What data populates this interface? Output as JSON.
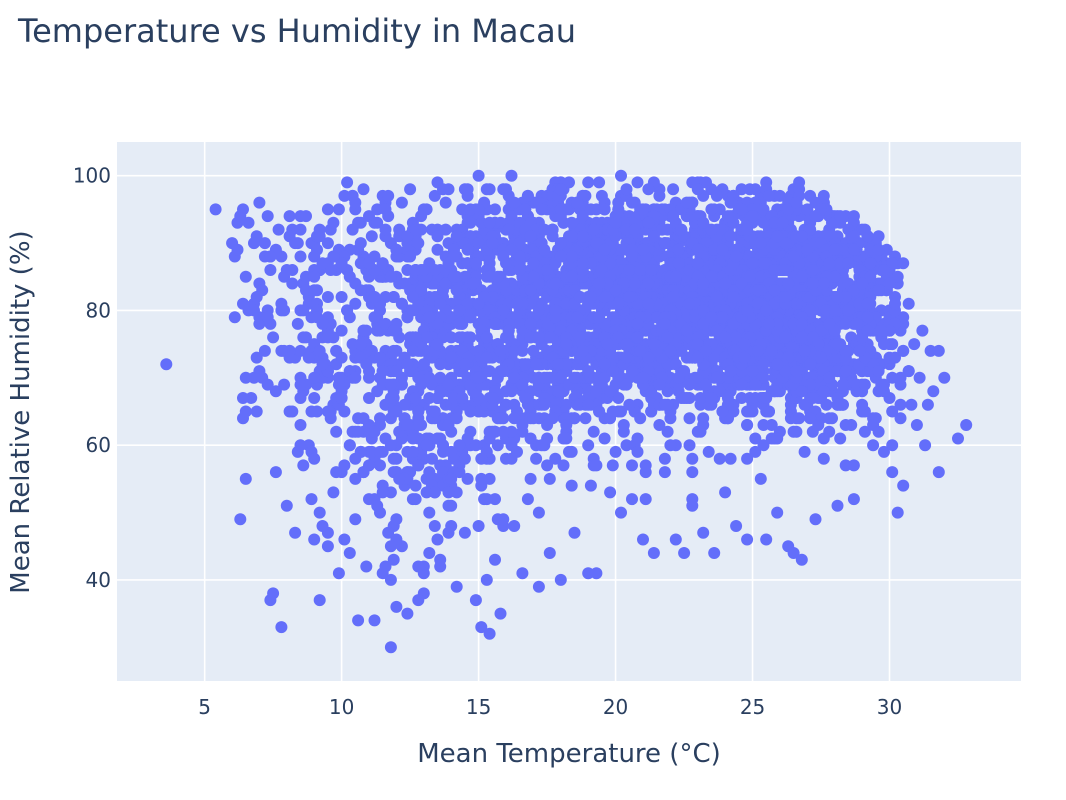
{
  "chart_data": {
    "type": "scatter",
    "title": "Temperature vs Humidity in Macau",
    "xlabel": "Mean Temperature (°C)",
    "ylabel": "Mean Relative Humidity (%)",
    "xlim": [
      1.8,
      34.8
    ],
    "ylim": [
      25,
      105
    ],
    "x_ticks": [
      5,
      10,
      15,
      20,
      25,
      30
    ],
    "y_ticks": [
      40,
      60,
      80,
      100
    ],
    "grid": true,
    "legend": "none",
    "colors": {
      "marker": "#636efa",
      "plot_bg": "#e5ecf6",
      "grid": "#ffffff",
      "text": "#2a3f5f"
    },
    "series": [
      {
        "points": [
          [
            3.6,
            72
          ],
          [
            5.4,
            95
          ],
          [
            6.0,
            90
          ],
          [
            6.1,
            88
          ],
          [
            6.2,
            93
          ],
          [
            6.3,
            94
          ],
          [
            6.3,
            49
          ],
          [
            6.5,
            70
          ],
          [
            6.6,
            93
          ],
          [
            6.9,
            91
          ],
          [
            7.0,
            84
          ],
          [
            7.0,
            78
          ],
          [
            7.2,
            90
          ],
          [
            7.3,
            94
          ],
          [
            7.4,
            37
          ],
          [
            7.5,
            38
          ],
          [
            7.5,
            76
          ],
          [
            7.6,
            68
          ],
          [
            7.7,
            92
          ],
          [
            7.8,
            33
          ],
          [
            7.8,
            88
          ],
          [
            7.9,
            80
          ],
          [
            8.0,
            51
          ],
          [
            8.1,
            74
          ],
          [
            8.2,
            65
          ],
          [
            8.3,
            47
          ],
          [
            8.4,
            59
          ],
          [
            8.6,
            84
          ],
          [
            8.8,
            60
          ],
          [
            8.9,
            52
          ],
          [
            9.0,
            46
          ],
          [
            9.1,
            70
          ],
          [
            9.2,
            37
          ],
          [
            9.2,
            50
          ],
          [
            9.5,
            47
          ],
          [
            9.6,
            92
          ],
          [
            9.7,
            66
          ],
          [
            9.9,
            41
          ],
          [
            10.0,
            56
          ],
          [
            10.1,
            46
          ],
          [
            10.2,
            99
          ],
          [
            10.3,
            44
          ],
          [
            10.5,
            62
          ],
          [
            10.6,
            34
          ],
          [
            10.8,
            98
          ],
          [
            11.0,
            59
          ],
          [
            11.2,
            34
          ],
          [
            11.4,
            50
          ],
          [
            11.6,
            42
          ],
          [
            11.8,
            30
          ],
          [
            11.9,
            48
          ],
          [
            12.0,
            36
          ],
          [
            12.2,
            45
          ],
          [
            12.4,
            35
          ],
          [
            12.6,
            52
          ],
          [
            12.8,
            64
          ],
          [
            13.0,
            38
          ],
          [
            13.2,
            44
          ],
          [
            13.4,
            55
          ],
          [
            13.6,
            42
          ],
          [
            13.8,
            69
          ],
          [
            14.0,
            51
          ],
          [
            14.2,
            39
          ],
          [
            14.5,
            47
          ],
          [
            14.7,
            60
          ],
          [
            14.9,
            37
          ],
          [
            15.1,
            33
          ],
          [
            15.3,
            40
          ],
          [
            15.4,
            32
          ],
          [
            15.6,
            43
          ],
          [
            15.8,
            35
          ],
          [
            16.0,
            58
          ],
          [
            16.3,
            48
          ],
          [
            16.6,
            41
          ],
          [
            16.9,
            55
          ],
          [
            17.2,
            39
          ],
          [
            17.6,
            44
          ],
          [
            18.0,
            40
          ],
          [
            18.5,
            47
          ],
          [
            19.0,
            41
          ],
          [
            19.3,
            41
          ],
          [
            19.8,
            53
          ],
          [
            20.2,
            50
          ],
          [
            20.6,
            57
          ],
          [
            21.0,
            46
          ],
          [
            21.4,
            44
          ],
          [
            21.8,
            58
          ],
          [
            22.2,
            46
          ],
          [
            22.5,
            44
          ],
          [
            22.8,
            51
          ],
          [
            23.2,
            47
          ],
          [
            23.6,
            44
          ],
          [
            24.0,
            53
          ],
          [
            24.4,
            48
          ],
          [
            24.8,
            46
          ],
          [
            25.3,
            55
          ],
          [
            25.5,
            46
          ],
          [
            25.9,
            50
          ],
          [
            26.3,
            45
          ],
          [
            26.5,
            44
          ],
          [
            26.8,
            43
          ],
          [
            27.3,
            49
          ],
          [
            27.6,
            58
          ],
          [
            28.1,
            51
          ],
          [
            28.4,
            57
          ],
          [
            28.7,
            52
          ],
          [
            29.1,
            62
          ],
          [
            29.5,
            64
          ],
          [
            29.8,
            59
          ],
          [
            30.1,
            56
          ],
          [
            30.3,
            50
          ],
          [
            30.5,
            54
          ],
          [
            30.8,
            66
          ],
          [
            31.0,
            63
          ],
          [
            31.3,
            60
          ],
          [
            31.6,
            68
          ],
          [
            31.8,
            56
          ],
          [
            32.0,
            70
          ],
          [
            32.5,
            61
          ],
          [
            32.8,
            63
          ],
          [
            29.9,
            87
          ],
          [
            30.2,
            82
          ],
          [
            30.5,
            78
          ],
          [
            30.9,
            75
          ],
          [
            31.2,
            77
          ],
          [
            31.5,
            74
          ],
          [
            31.8,
            74
          ],
          [
            30.7,
            71
          ],
          [
            31.1,
            70
          ],
          [
            31.4,
            66
          ],
          [
            16.2,
            100
          ],
          [
            20.2,
            100
          ],
          [
            15.0,
            100
          ],
          [
            18.0,
            99
          ],
          [
            22.8,
            99
          ],
          [
            19.4,
            99
          ],
          [
            24.6,
            98
          ],
          [
            26.0,
            97
          ],
          [
            27.5,
            96
          ],
          [
            28.0,
            94
          ],
          [
            28.8,
            92
          ],
          [
            29.4,
            88
          ],
          [
            10.5,
            95
          ],
          [
            11.5,
            97
          ],
          [
            12.5,
            98
          ],
          [
            13.5,
            99
          ],
          [
            14.5,
            98
          ],
          [
            8.5,
            94
          ],
          [
            9.5,
            95
          ],
          [
            9.0,
            90
          ],
          [
            8.2,
            92
          ],
          [
            7.0,
            96
          ],
          [
            10.8,
            88
          ],
          [
            11.8,
            90
          ],
          [
            12.8,
            92
          ],
          [
            9.8,
            86
          ],
          [
            8.8,
            82
          ],
          [
            10.2,
            80
          ],
          [
            11.2,
            82
          ],
          [
            12.0,
            85
          ],
          [
            9.3,
            76
          ],
          [
            10.6,
            74
          ],
          [
            11.6,
            72
          ],
          [
            12.6,
            76
          ],
          [
            8.6,
            68
          ],
          [
            9.6,
            65
          ],
          [
            10.6,
            64
          ],
          [
            11.6,
            66
          ],
          [
            12.4,
            62
          ],
          [
            13.2,
            60
          ],
          [
            13.8,
            66
          ],
          [
            14.2,
            72
          ],
          [
            13.6,
            78
          ],
          [
            13.2,
            82
          ],
          [
            13.8,
            88
          ],
          [
            14.4,
            92
          ],
          [
            15.0,
            95
          ],
          [
            15.6,
            92
          ],
          [
            14.9,
            86
          ],
          [
            14.6,
            80
          ],
          [
            15.2,
            75
          ],
          [
            14.8,
            68
          ],
          [
            15.5,
            62
          ],
          [
            16.0,
            66
          ],
          [
            16.4,
            72
          ],
          [
            16.0,
            80
          ],
          [
            16.6,
            86
          ],
          [
            17.0,
            92
          ],
          [
            17.6,
            96
          ],
          [
            17.2,
            76
          ],
          [
            17.6,
            70
          ],
          [
            17.2,
            64
          ],
          [
            17.8,
            58
          ],
          [
            18.2,
            62
          ],
          [
            18.6,
            68
          ],
          [
            18.4,
            74
          ],
          [
            18.8,
            80
          ],
          [
            18.2,
            86
          ],
          [
            19.0,
            90
          ],
          [
            19.6,
            95
          ],
          [
            19.8,
            84
          ],
          [
            19.4,
            78
          ],
          [
            20.0,
            72
          ],
          [
            19.6,
            64
          ],
          [
            20.4,
            60
          ],
          [
            20.8,
            66
          ],
          [
            21.0,
            74
          ],
          [
            21.4,
            82
          ],
          [
            21.0,
            88
          ],
          [
            21.6,
            94
          ],
          [
            22.2,
            90
          ],
          [
            22.6,
            84
          ],
          [
            22.0,
            78
          ],
          [
            22.4,
            70
          ],
          [
            22.0,
            64
          ],
          [
            23.0,
            62
          ],
          [
            23.4,
            68
          ],
          [
            23.0,
            76
          ],
          [
            23.6,
            82
          ],
          [
            23.4,
            88
          ],
          [
            24.0,
            93
          ],
          [
            24.4,
            86
          ],
          [
            24.0,
            80
          ],
          [
            24.6,
            74
          ],
          [
            24.2,
            68
          ],
          [
            24.8,
            63
          ],
          [
            25.4,
            66
          ],
          [
            25.2,
            72
          ],
          [
            25.6,
            78
          ],
          [
            25.0,
            84
          ],
          [
            25.8,
            90
          ],
          [
            26.4,
            94
          ],
          [
            26.6,
            88
          ],
          [
            26.2,
            82
          ],
          [
            26.8,
            76
          ],
          [
            26.4,
            70
          ],
          [
            27.0,
            66
          ],
          [
            27.4,
            72
          ],
          [
            27.2,
            80
          ],
          [
            27.8,
            86
          ],
          [
            28.2,
            90
          ],
          [
            28.4,
            82
          ],
          [
            28.0,
            76
          ],
          [
            28.6,
            70
          ],
          [
            28.2,
            66
          ],
          [
            29.0,
            68
          ],
          [
            29.2,
            74
          ],
          [
            29.0,
            80
          ],
          [
            29.6,
            84
          ],
          [
            29.8,
            78
          ],
          [
            30.0,
            72
          ],
          [
            29.6,
            68
          ],
          [
            12.2,
            70
          ],
          [
            13.0,
            72
          ],
          [
            11.4,
            78
          ],
          [
            12.8,
            68
          ],
          [
            14.0,
            56
          ],
          [
            15.4,
            58
          ],
          [
            16.8,
            52
          ],
          [
            18.4,
            54
          ],
          [
            19.2,
            58
          ],
          [
            20.6,
            52
          ],
          [
            21.8,
            56
          ],
          [
            23.8,
            58
          ],
          [
            25.4,
            60
          ],
          [
            26.6,
            62
          ],
          [
            27.8,
            62
          ],
          [
            29.4,
            64
          ],
          [
            10.4,
            92
          ],
          [
            11.0,
            94
          ],
          [
            9.0,
            88
          ],
          [
            8.0,
            86
          ],
          [
            7.4,
            88
          ],
          [
            6.8,
            90
          ],
          [
            7.8,
            80
          ],
          [
            8.4,
            78
          ],
          [
            9.4,
            72
          ],
          [
            10.0,
            70
          ],
          [
            9.8,
            62
          ],
          [
            10.8,
            56
          ],
          [
            11.2,
            52
          ],
          [
            12.4,
            56
          ],
          [
            13.2,
            50
          ],
          [
            14.0,
            48
          ],
          [
            12.0,
            46
          ],
          [
            13.0,
            42
          ]
        ]
      }
    ]
  }
}
